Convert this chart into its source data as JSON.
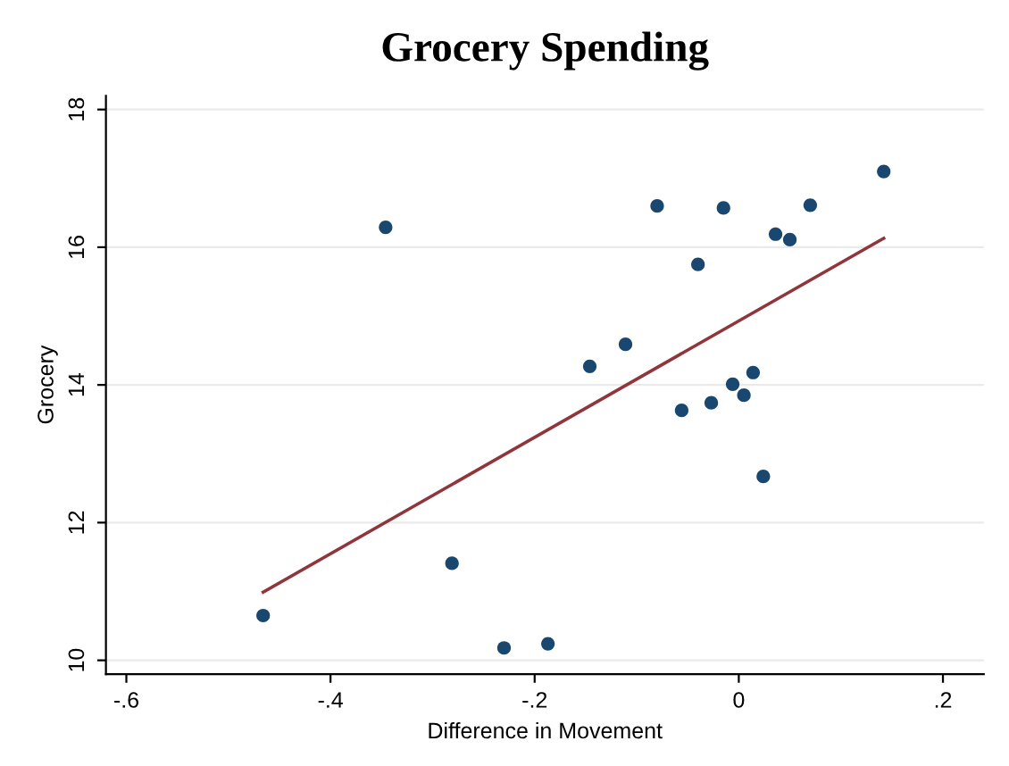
{
  "chart_data": {
    "type": "scatter",
    "title": "Grocery Spending",
    "xlabel": "Difference in Movement",
    "ylabel": "Grocery",
    "series": [
      {
        "color": "#1a476f",
        "marker": "circle",
        "x": [
          -0.466,
          -0.346,
          -0.281,
          -0.23,
          -0.187,
          -0.146,
          -0.111,
          -0.08,
          -0.056,
          -0.04,
          -0.027,
          -0.015,
          -0.006,
          0.005,
          0.014,
          0.024,
          0.036,
          0.05,
          0.07,
          0.142
        ],
        "values": [
          10.65,
          16.29,
          11.41,
          10.18,
          10.24,
          14.27,
          14.59,
          16.6,
          13.63,
          15.75,
          13.74,
          16.57,
          14.01,
          13.85,
          14.18,
          12.67,
          16.19,
          16.11,
          16.61,
          17.1
        ]
      },
      {
        "type": "line",
        "color": "#90353b",
        "marker": "none",
        "x": [
          -0.466,
          0.142
        ],
        "values": [
          10.99,
          16.13
        ]
      }
    ],
    "xlim": [
      -0.62,
      0.24
    ],
    "ylim": [
      9.8,
      18.2
    ],
    "xticks": [
      {
        "value": -0.6,
        "label": "-.6"
      },
      {
        "value": -0.4,
        "label": "-.4"
      },
      {
        "value": -0.2,
        "label": "-.2"
      },
      0,
      {
        "value": 0.2,
        "label": ".2"
      }
    ],
    "yticks": [
      10,
      12,
      14,
      16,
      18
    ],
    "grid": "y",
    "legend": false
  }
}
